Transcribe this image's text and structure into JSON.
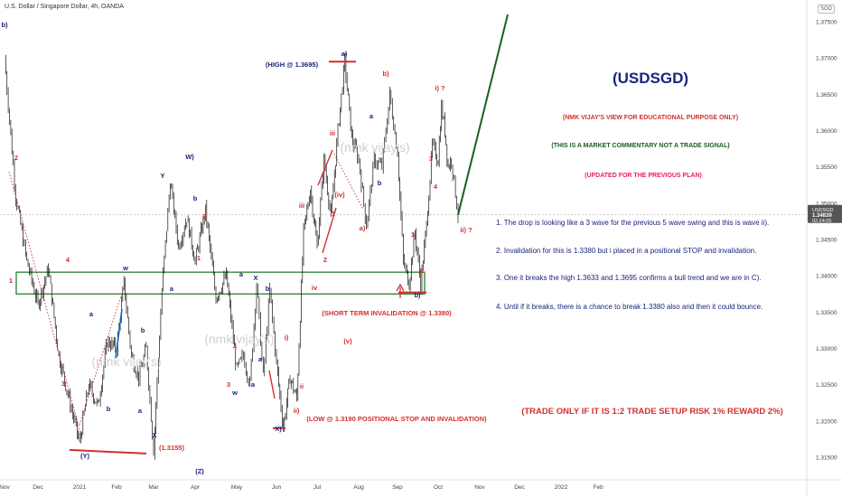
{
  "header": {
    "title": "U.S. Dollar / Singapore Dollar, 4h, OANDA",
    "currency": "SGD"
  },
  "price_axis": {
    "ticks": [
      "1.37500",
      "1.37000",
      "1.36500",
      "1.36000",
      "1.35500",
      "1.35000",
      "1.34500",
      "1.34000",
      "1.33500",
      "1.33000",
      "1.32500",
      "1.32000",
      "1.31500"
    ],
    "last_symbol": "USDSGD",
    "last_price": "1.34839",
    "countdown": "02:24:05"
  },
  "time_axis": {
    "ticks": [
      "Nov",
      "Dec",
      "2021",
      "Feb",
      "Mar",
      "Apr",
      "May",
      "Jun",
      "Jul",
      "Aug",
      "Sep",
      "Oct",
      "Nov",
      "Dec",
      "2022",
      "Feb"
    ]
  },
  "watermark": "(nmk vijay's)",
  "texts": {
    "pair": "(USDSGD)",
    "view": "(NMK VIJAY'S VIEW FOR EDUCATIONAL PURPOSE ONLY)",
    "disclaimer": "(THIS IS A MARKET COMMENTARY NOT A TRADE SIGNAL)",
    "updated": "(UPDATED FOR THE PREVIOUS PLAN)",
    "note1": "1. The drop is looking like a 3 wave for the previous 5 wave swing and this is wave ii).",
    "note2": "2. Invalidation for this is 1.3380 but i placed in a positional STOP and invalidation.",
    "note3": "3. One it breaks the high 1.3633 and 1.3695 confirms a bull trend and we are in C).",
    "note4": "4. Until if it breaks, there is a chance to break 1.3380 also and then it could bounce.",
    "trade": "(TRADE ONLY IF IT IS 1:2 TRADE SETUP RISK 1% REWARD 2%)",
    "high": "(HIGH @ 1.3695)",
    "short_inval": "(SHORT TERM INVALIDATION @ 1.3380)",
    "low": "(LOW @ 1.3190 POSITIONAL STOP AND INVALIDATION)",
    "low2": "(1.3155)"
  },
  "colors": {
    "candle": "#111111",
    "red": "#d32f2f",
    "navy": "#1a237e",
    "blue": "#283593",
    "green": "#1b5e20",
    "magenta": "#e91e63",
    "box": "#2e7d32"
  },
  "chart_data": {
    "type": "line",
    "symbol": "USDSGD",
    "timeframe": "4h",
    "x_ticks": [
      "Nov",
      "Dec",
      "2021",
      "Feb",
      "Mar",
      "Apr",
      "May",
      "Jun",
      "Jul",
      "Aug",
      "Sep",
      "Oct",
      "Nov",
      "Dec",
      "2022",
      "Feb"
    ],
    "ylim": [
      1.313,
      1.378
    ],
    "grid": false,
    "price_path": [
      {
        "x": "Nov",
        "y": 1.37
      },
      {
        "x": "Nov",
        "y": 1.351
      },
      {
        "x": "Nov",
        "y": 1.342
      },
      {
        "x": "Dec",
        "y": 1.336
      },
      {
        "x": "Dec",
        "y": 1.341
      },
      {
        "x": "Dec",
        "y": 1.329
      },
      {
        "x": "Dec",
        "y": 1.323
      },
      {
        "x": "2021",
        "y": 1.317
      },
      {
        "x": "2021",
        "y": 1.325
      },
      {
        "x": "2021",
        "y": 1.322
      },
      {
        "x": "2021",
        "y": 1.331
      },
      {
        "x": "Feb",
        "y": 1.33
      },
      {
        "x": "Feb",
        "y": 1.339
      },
      {
        "x": "Feb",
        "y": 1.329
      },
      {
        "x": "Feb",
        "y": 1.326
      },
      {
        "x": "Feb",
        "y": 1.33
      },
      {
        "x": "Mar",
        "y": 1.316
      },
      {
        "x": "Mar",
        "y": 1.338
      },
      {
        "x": "Mar",
        "y": 1.353
      },
      {
        "x": "Mar",
        "y": 1.344
      },
      {
        "x": "Mar",
        "y": 1.348
      },
      {
        "x": "Apr",
        "y": 1.342
      },
      {
        "x": "Apr",
        "y": 1.349
      },
      {
        "x": "Apr",
        "y": 1.337
      },
      {
        "x": "Apr",
        "y": 1.34
      },
      {
        "x": "May",
        "y": 1.327
      },
      {
        "x": "May",
        "y": 1.329
      },
      {
        "x": "May",
        "y": 1.325
      },
      {
        "x": "May",
        "y": 1.339
      },
      {
        "x": "May",
        "y": 1.326
      },
      {
        "x": "May",
        "y": 1.338
      },
      {
        "x": "Jun",
        "y": 1.328
      },
      {
        "x": "Jun",
        "y": 1.319
      },
      {
        "x": "Jun",
        "y": 1.326
      },
      {
        "x": "Jun",
        "y": 1.323
      },
      {
        "x": "Jun",
        "y": 1.346
      },
      {
        "x": "Jun",
        "y": 1.352
      },
      {
        "x": "Jul",
        "y": 1.344
      },
      {
        "x": "Jul",
        "y": 1.356
      },
      {
        "x": "Jul",
        "y": 1.348
      },
      {
        "x": "Jul",
        "y": 1.36
      },
      {
        "x": "Jul",
        "y": 1.3695
      },
      {
        "x": "Jul",
        "y": 1.359
      },
      {
        "x": "Aug",
        "y": 1.356
      },
      {
        "x": "Aug",
        "y": 1.347
      },
      {
        "x": "Aug",
        "y": 1.356
      },
      {
        "x": "Aug",
        "y": 1.355
      },
      {
        "x": "Aug",
        "y": 1.365
      },
      {
        "x": "Sep",
        "y": 1.357
      },
      {
        "x": "Sep",
        "y": 1.342
      },
      {
        "x": "Sep",
        "y": 1.339
      },
      {
        "x": "Sep",
        "y": 1.346
      },
      {
        "x": "Sep",
        "y": 1.339
      },
      {
        "x": "Sep",
        "y": 1.347
      },
      {
        "x": "Sep",
        "y": 1.358
      },
      {
        "x": "Oct",
        "y": 1.356
      },
      {
        "x": "Oct",
        "y": 1.3633
      },
      {
        "x": "Oct",
        "y": 1.36
      },
      {
        "x": "Oct",
        "y": 1.355
      },
      {
        "x": "Oct",
        "y": 1.356
      },
      {
        "x": "Oct",
        "y": 1.3484
      }
    ],
    "projection": {
      "from": {
        "x": "Oct",
        "y": 1.3484
      },
      "to": {
        "x": "Nov",
        "y": 1.376
      }
    },
    "levels": [
      {
        "label": "HIGH",
        "y": 1.3695
      },
      {
        "label": "SHORT TERM INVALIDATION",
        "y": 1.338
      },
      {
        "label": "LOW",
        "y": 1.319
      },
      {
        "label": "LOW",
        "y": 1.3155
      }
    ],
    "zone": {
      "from": "Nov",
      "to": "Sep",
      "y1": 1.3375,
      "y2": 1.3405
    },
    "wave_labels": [
      "b)",
      "2",
      "1",
      "4",
      "3",
      "(Y)",
      "W)",
      "Y",
      "b",
      "2",
      "1",
      "a",
      "w",
      "b",
      "a",
      "X",
      "b",
      "a",
      "(Z)",
      "a",
      "w",
      "3",
      "4",
      "a",
      "X",
      "b",
      "a",
      "X)",
      "ii)",
      "i)",
      "ii",
      "iii",
      "iii",
      "(iv)",
      "1",
      "2",
      "iv",
      "(v)",
      "a)",
      "b)",
      "a",
      "b",
      "a)",
      "b)",
      "i) ?",
      "3",
      "4",
      "1",
      "2",
      "ii) ?"
    ],
    "last_price": 1.34839
  }
}
